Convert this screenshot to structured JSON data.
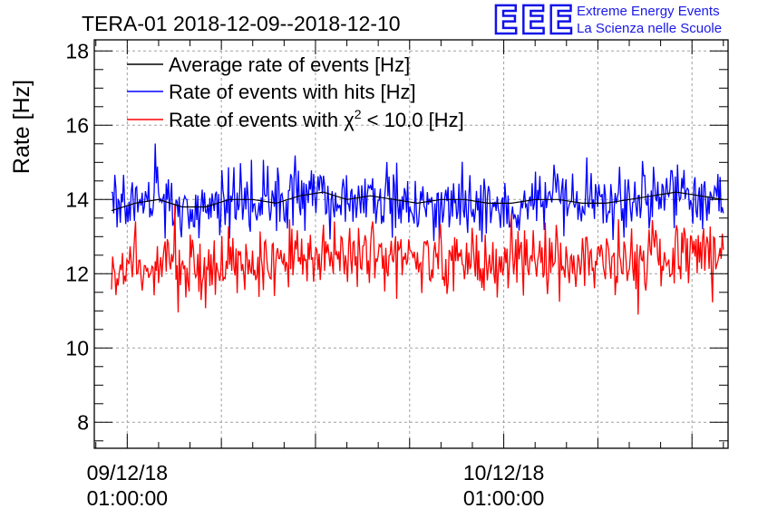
{
  "chart_data": {
    "type": "line",
    "title": "TERA-01 2018-12-09--2018-12-10",
    "xlabel": "",
    "ylabel": "Rate [Hz]",
    "ylim": [
      7.3,
      18.3
    ],
    "yticks": [
      8,
      10,
      12,
      14,
      16,
      18
    ],
    "x_unit": "hours since 09/12/18 00:00:00",
    "xlim": [
      -1.1,
      39.3
    ],
    "xticks": [
      {
        "x": 1,
        "date": "09/12/18",
        "time": "01:00:00"
      },
      {
        "x": 25,
        "date": "10/12/18",
        "time": "01:00:00"
      }
    ],
    "grid": true,
    "legend": "top-left",
    "series": [
      {
        "name": "Average rate of events [Hz]",
        "color": "#000000",
        "x": [
          0,
          1.5,
          3,
          4.5,
          6,
          7.5,
          9,
          10.5,
          12,
          13.5,
          15,
          16.5,
          18,
          19.5,
          21,
          22.5,
          24,
          25.5,
          27,
          28.5,
          30,
          31.5,
          33,
          34.5,
          36,
          37.5,
          39
        ],
        "values": [
          13.7,
          13.9,
          14.0,
          13.8,
          13.8,
          14.0,
          14.0,
          13.9,
          14.1,
          14.2,
          14.0,
          14.1,
          14.0,
          13.9,
          14.0,
          14.0,
          13.9,
          13.9,
          14.0,
          14.0,
          13.9,
          13.9,
          14.0,
          14.1,
          14.2,
          14.1,
          14.0
        ]
      },
      {
        "name": "Rate of events with hits [Hz]",
        "color": "#0000ff",
        "x": [
          0,
          1.5,
          3,
          4.5,
          6,
          7.5,
          9,
          10.5,
          12,
          13.5,
          15,
          16.5,
          18,
          19.5,
          21,
          22.5,
          24,
          25.5,
          27,
          28.5,
          30,
          31.5,
          33,
          34.5,
          36,
          37.5,
          39
        ],
        "values": [
          13.7,
          13.9,
          14.0,
          13.8,
          13.8,
          14.0,
          14.0,
          13.9,
          14.1,
          14.2,
          14.0,
          14.1,
          14.0,
          13.9,
          14.0,
          14.0,
          13.9,
          13.9,
          14.0,
          14.0,
          13.9,
          13.9,
          14.0,
          14.1,
          14.2,
          14.1,
          14.0
        ],
        "min": 12.7,
        "max": 15.7
      },
      {
        "name": "Rate of events with χ² < 10.0 [Hz]",
        "legend_parts": [
          "Rate of events with χ",
          "2",
          " < 10.0 [Hz]"
        ],
        "color": "#ff0000",
        "x": [
          0,
          1.5,
          3,
          4.5,
          6,
          7.5,
          9,
          10.5,
          12,
          13.5,
          15,
          16.5,
          18,
          19.5,
          21,
          22.5,
          24,
          25.5,
          27,
          28.5,
          30,
          31.5,
          33,
          34.5,
          36,
          37.5,
          39
        ],
        "values": [
          12.2,
          12.2,
          12.3,
          12.2,
          12.2,
          12.4,
          12.4,
          12.3,
          12.5,
          12.6,
          12.6,
          12.5,
          12.5,
          12.4,
          12.4,
          12.3,
          12.3,
          12.4,
          12.4,
          12.4,
          12.3,
          12.3,
          12.4,
          12.5,
          12.5,
          12.6,
          12.5
        ],
        "min": 10.9,
        "max": 13.9
      }
    ]
  },
  "logo": {
    "mark": "EEE",
    "line1": "Extreme Energy Events",
    "line2": "La Scienza nelle Scuole"
  },
  "colors": {
    "logo": "#1a1ae8",
    "grid": "#a0a0a0"
  }
}
